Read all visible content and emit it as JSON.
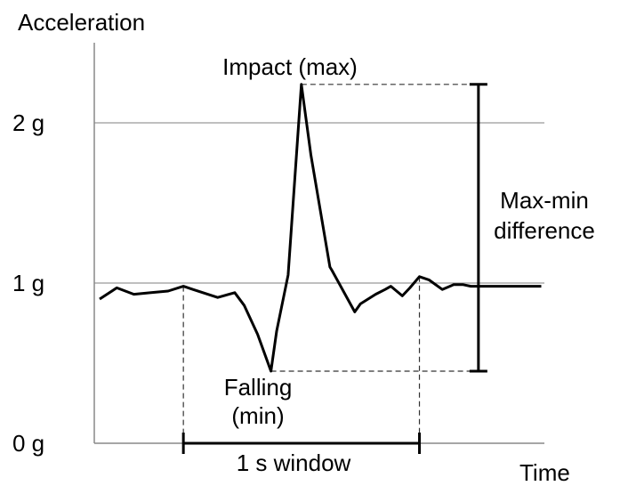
{
  "chart_data": {
    "type": "line",
    "title": "",
    "xlabel": "Time",
    "ylabel": "Acceleration",
    "ylim": [
      0,
      2.4
    ],
    "y_ticks": [
      {
        "value": 0,
        "label": "0 g"
      },
      {
        "value": 1,
        "label": "1 g"
      },
      {
        "value": 2,
        "label": "2 g"
      }
    ],
    "grid": true,
    "series": [
      {
        "values_x": [
          0.0,
          0.09,
          0.18,
          0.27,
          0.36,
          0.44,
          0.49,
          0.62,
          0.71,
          0.76,
          0.83,
          0.9,
          0.93,
          0.99,
          1.06,
          1.11,
          1.21,
          1.22,
          1.34,
          1.37,
          1.45,
          1.5,
          1.53,
          1.59,
          1.63,
          1.68,
          1.73,
          1.8,
          1.86,
          1.91,
          1.95,
          2.05,
          2.19,
          2.32
        ],
        "values_y": [
          0.9,
          0.97,
          0.93,
          0.94,
          0.95,
          0.98,
          0.96,
          0.91,
          0.94,
          0.86,
          0.68,
          0.45,
          0.7,
          1.05,
          2.24,
          1.8,
          1.1,
          1.08,
          0.82,
          0.87,
          0.93,
          0.96,
          0.98,
          0.92,
          0.97,
          1.04,
          1.02,
          0.96,
          0.99,
          0.99,
          0.98,
          0.98,
          0.98,
          0.98
        ]
      }
    ],
    "annotations": {
      "impact": "Impact (max)",
      "falling_line1": "Falling",
      "falling_line2": "(min)",
      "difference_line1": "Max-min",
      "difference_line2": "difference",
      "window": "1 s window"
    }
  }
}
